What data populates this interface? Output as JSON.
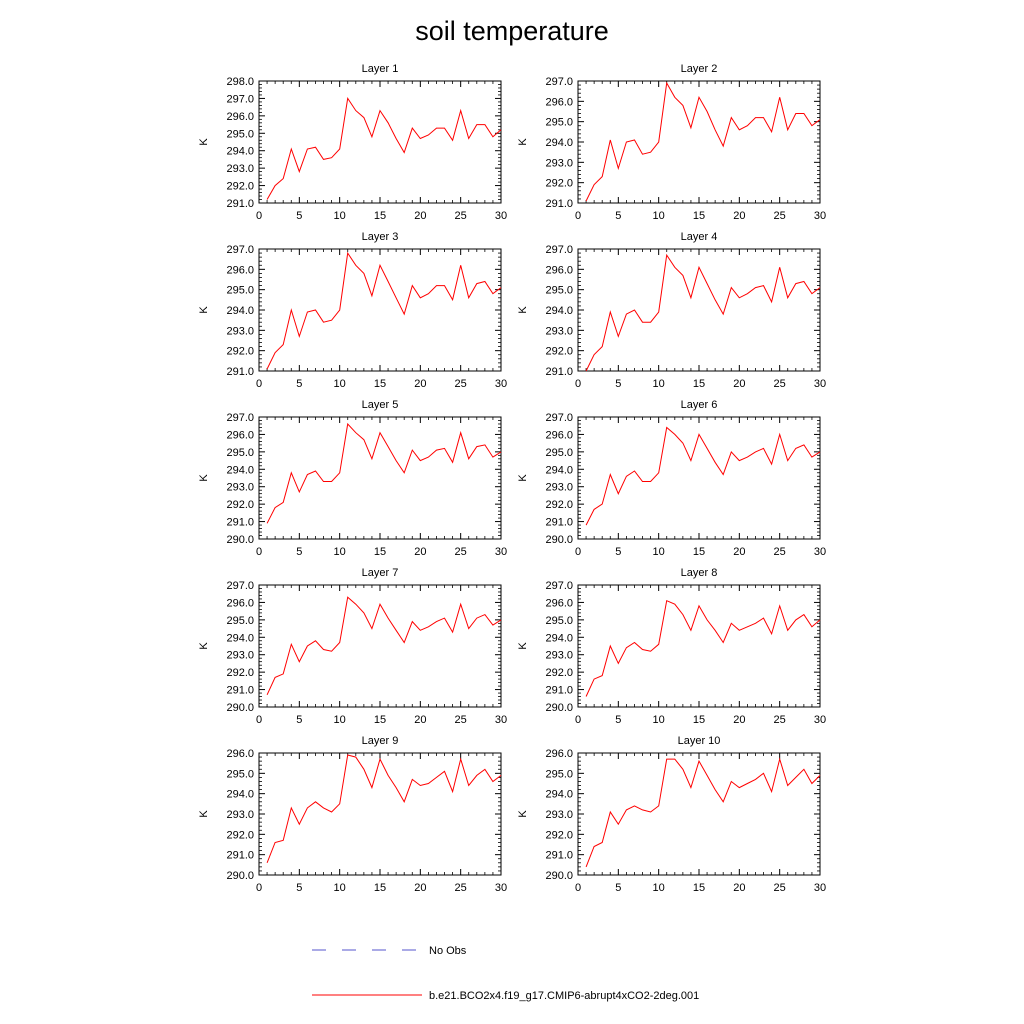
{
  "title": "soil temperature",
  "legend": {
    "placement": "bottom",
    "entries": [
      {
        "label": "No Obs",
        "color": "#5555cc",
        "style": "dashed"
      },
      {
        "label": "b.e21.BCO2x4.f19_g17.CMIP6-abrupt4xCO2-2deg.001",
        "color": "#ff0000",
        "style": "solid"
      }
    ]
  },
  "chart_data": [
    {
      "type": "line",
      "title": "Layer 1",
      "ylabel": "K",
      "xlim": [
        0,
        30
      ],
      "ylim": [
        291,
        298
      ],
      "xticks": [
        "0",
        "5",
        "10",
        "15",
        "20",
        "25",
        "30"
      ],
      "yticks": [
        "291.0",
        "292.0",
        "293.0",
        "294.0",
        "295.0",
        "296.0",
        "297.0",
        "298.0"
      ],
      "series": [
        {
          "name": "b.e21.BCO2x4.f19_g17.CMIP6-abrupt4xCO2-2deg.001",
          "color": "#ff0000",
          "x": [
            1,
            2,
            3,
            4,
            5,
            6,
            7,
            8,
            9,
            10,
            11,
            12,
            13,
            14,
            15,
            16,
            17,
            18,
            19,
            20,
            21,
            22,
            23,
            24,
            25,
            26,
            27,
            28,
            29,
            30
          ],
          "y": [
            291.2,
            292.0,
            292.4,
            294.1,
            292.8,
            294.1,
            294.2,
            293.5,
            293.6,
            294.1,
            297.0,
            296.3,
            295.9,
            294.8,
            296.3,
            295.6,
            294.7,
            293.9,
            295.3,
            294.7,
            294.9,
            295.3,
            295.3,
            294.6,
            296.3,
            294.7,
            295.5,
            295.5,
            294.8,
            295.2
          ]
        }
      ]
    },
    {
      "type": "line",
      "title": "Layer 2",
      "ylabel": "K",
      "xlim": [
        0,
        30
      ],
      "ylim": [
        291,
        297
      ],
      "xticks": [
        "0",
        "5",
        "10",
        "15",
        "20",
        "25",
        "30"
      ],
      "yticks": [
        "291.0",
        "292.0",
        "293.0",
        "294.0",
        "295.0",
        "296.0",
        "297.0"
      ],
      "series": [
        {
          "name": "b.e21.BCO2x4.f19_g17.CMIP6-abrupt4xCO2-2deg.001",
          "color": "#ff0000",
          "x": [
            1,
            2,
            3,
            4,
            5,
            6,
            7,
            8,
            9,
            10,
            11,
            12,
            13,
            14,
            15,
            16,
            17,
            18,
            19,
            20,
            21,
            22,
            23,
            24,
            25,
            26,
            27,
            28,
            29,
            30
          ],
          "y": [
            291.1,
            291.9,
            292.3,
            294.1,
            292.7,
            294.0,
            294.1,
            293.4,
            293.5,
            294.0,
            296.9,
            296.2,
            295.8,
            294.7,
            296.2,
            295.5,
            294.6,
            293.8,
            295.2,
            294.6,
            294.8,
            295.2,
            295.2,
            294.5,
            296.2,
            294.6,
            295.4,
            295.4,
            294.8,
            295.1
          ]
        }
      ]
    },
    {
      "type": "line",
      "title": "Layer 3",
      "ylabel": "K",
      "xlim": [
        0,
        30
      ],
      "ylim": [
        291,
        297
      ],
      "xticks": [
        "0",
        "5",
        "10",
        "15",
        "20",
        "25",
        "30"
      ],
      "yticks": [
        "291.0",
        "292.0",
        "293.0",
        "294.0",
        "295.0",
        "296.0",
        "297.0"
      ],
      "series": [
        {
          "name": "b.e21.BCO2x4.f19_g17.CMIP6-abrupt4xCO2-2deg.001",
          "color": "#ff0000",
          "x": [
            1,
            2,
            3,
            4,
            5,
            6,
            7,
            8,
            9,
            10,
            11,
            12,
            13,
            14,
            15,
            16,
            17,
            18,
            19,
            20,
            21,
            22,
            23,
            24,
            25,
            26,
            27,
            28,
            29,
            30
          ],
          "y": [
            291.1,
            291.9,
            292.3,
            294.0,
            292.7,
            293.9,
            294.0,
            293.4,
            293.5,
            294.0,
            296.8,
            296.2,
            295.8,
            294.7,
            296.2,
            295.4,
            294.6,
            293.8,
            295.2,
            294.6,
            294.8,
            295.2,
            295.2,
            294.5,
            296.2,
            294.6,
            295.3,
            295.4,
            294.8,
            295.1
          ]
        }
      ]
    },
    {
      "type": "line",
      "title": "Layer 4",
      "ylabel": "K",
      "xlim": [
        0,
        30
      ],
      "ylim": [
        291,
        297
      ],
      "xticks": [
        "0",
        "5",
        "10",
        "15",
        "20",
        "25",
        "30"
      ],
      "yticks": [
        "291.0",
        "292.0",
        "293.0",
        "294.0",
        "295.0",
        "296.0",
        "297.0"
      ],
      "series": [
        {
          "name": "b.e21.BCO2x4.f19_g17.CMIP6-abrupt4xCO2-2deg.001",
          "color": "#ff0000",
          "x": [
            1,
            2,
            3,
            4,
            5,
            6,
            7,
            8,
            9,
            10,
            11,
            12,
            13,
            14,
            15,
            16,
            17,
            18,
            19,
            20,
            21,
            22,
            23,
            24,
            25,
            26,
            27,
            28,
            29,
            30
          ],
          "y": [
            291.0,
            291.8,
            292.2,
            293.9,
            292.7,
            293.8,
            294.0,
            293.4,
            293.4,
            293.9,
            296.7,
            296.1,
            295.7,
            294.6,
            296.1,
            295.3,
            294.5,
            293.8,
            295.1,
            294.6,
            294.8,
            295.1,
            295.2,
            294.4,
            296.1,
            294.6,
            295.3,
            295.4,
            294.8,
            295.1
          ]
        }
      ]
    },
    {
      "type": "line",
      "title": "Layer 5",
      "ylabel": "K",
      "xlim": [
        0,
        30
      ],
      "ylim": [
        290,
        297
      ],
      "xticks": [
        "0",
        "5",
        "10",
        "15",
        "20",
        "25",
        "30"
      ],
      "yticks": [
        "290.0",
        "291.0",
        "292.0",
        "293.0",
        "294.0",
        "295.0",
        "296.0",
        "297.0"
      ],
      "series": [
        {
          "name": "b.e21.BCO2x4.f19_g17.CMIP6-abrupt4xCO2-2deg.001",
          "color": "#ff0000",
          "x": [
            1,
            2,
            3,
            4,
            5,
            6,
            7,
            8,
            9,
            10,
            11,
            12,
            13,
            14,
            15,
            16,
            17,
            18,
            19,
            20,
            21,
            22,
            23,
            24,
            25,
            26,
            27,
            28,
            29,
            30
          ],
          "y": [
            290.9,
            291.8,
            292.1,
            293.8,
            292.7,
            293.7,
            293.9,
            293.3,
            293.3,
            293.8,
            296.6,
            296.1,
            295.7,
            294.6,
            296.1,
            295.3,
            294.5,
            293.8,
            295.1,
            294.5,
            294.7,
            295.1,
            295.2,
            294.4,
            296.1,
            294.6,
            295.3,
            295.4,
            294.7,
            295.0
          ]
        }
      ]
    },
    {
      "type": "line",
      "title": "Layer 6",
      "ylabel": "K",
      "xlim": [
        0,
        30
      ],
      "ylim": [
        290,
        297
      ],
      "xticks": [
        "0",
        "5",
        "10",
        "15",
        "20",
        "25",
        "30"
      ],
      "yticks": [
        "290.0",
        "291.0",
        "292.0",
        "293.0",
        "294.0",
        "295.0",
        "296.0",
        "297.0"
      ],
      "series": [
        {
          "name": "b.e21.BCO2x4.f19_g17.CMIP6-abrupt4xCO2-2deg.001",
          "color": "#ff0000",
          "x": [
            1,
            2,
            3,
            4,
            5,
            6,
            7,
            8,
            9,
            10,
            11,
            12,
            13,
            14,
            15,
            16,
            17,
            18,
            19,
            20,
            21,
            22,
            23,
            24,
            25,
            26,
            27,
            28,
            29,
            30
          ],
          "y": [
            290.8,
            291.7,
            292.0,
            293.7,
            292.6,
            293.6,
            293.9,
            293.3,
            293.3,
            293.8,
            296.4,
            296.0,
            295.5,
            294.5,
            296.0,
            295.2,
            294.4,
            293.7,
            295.0,
            294.5,
            294.7,
            295.0,
            295.2,
            294.3,
            296.0,
            294.5,
            295.2,
            295.4,
            294.7,
            295.0
          ]
        }
      ]
    },
    {
      "type": "line",
      "title": "Layer 7",
      "ylabel": "K",
      "xlim": [
        0,
        30
      ],
      "ylim": [
        290,
        297
      ],
      "xticks": [
        "0",
        "5",
        "10",
        "15",
        "20",
        "25",
        "30"
      ],
      "yticks": [
        "290.0",
        "291.0",
        "292.0",
        "293.0",
        "294.0",
        "295.0",
        "296.0",
        "297.0"
      ],
      "series": [
        {
          "name": "b.e21.BCO2x4.f19_g17.CMIP6-abrupt4xCO2-2deg.001",
          "color": "#ff0000",
          "x": [
            1,
            2,
            3,
            4,
            5,
            6,
            7,
            8,
            9,
            10,
            11,
            12,
            13,
            14,
            15,
            16,
            17,
            18,
            19,
            20,
            21,
            22,
            23,
            24,
            25,
            26,
            27,
            28,
            29,
            30
          ],
          "y": [
            290.7,
            291.7,
            291.9,
            293.6,
            292.6,
            293.5,
            293.8,
            293.3,
            293.2,
            293.7,
            296.3,
            295.9,
            295.4,
            294.5,
            295.9,
            295.1,
            294.4,
            293.7,
            294.9,
            294.4,
            294.6,
            294.9,
            295.1,
            294.3,
            295.9,
            294.5,
            295.1,
            295.3,
            294.7,
            295.0
          ]
        }
      ]
    },
    {
      "type": "line",
      "title": "Layer 8",
      "ylabel": "K",
      "xlim": [
        0,
        30
      ],
      "ylim": [
        290,
        297
      ],
      "xticks": [
        "0",
        "5",
        "10",
        "15",
        "20",
        "25",
        "30"
      ],
      "yticks": [
        "290.0",
        "291.0",
        "292.0",
        "293.0",
        "294.0",
        "295.0",
        "296.0",
        "297.0"
      ],
      "series": [
        {
          "name": "b.e21.BCO2x4.f19_g17.CMIP6-abrupt4xCO2-2deg.001",
          "color": "#ff0000",
          "x": [
            1,
            2,
            3,
            4,
            5,
            6,
            7,
            8,
            9,
            10,
            11,
            12,
            13,
            14,
            15,
            16,
            17,
            18,
            19,
            20,
            21,
            22,
            23,
            24,
            25,
            26,
            27,
            28,
            29,
            30
          ],
          "y": [
            290.6,
            291.6,
            291.8,
            293.5,
            292.5,
            293.4,
            293.7,
            293.3,
            293.2,
            293.6,
            296.1,
            295.9,
            295.3,
            294.4,
            295.8,
            295.0,
            294.4,
            293.7,
            294.8,
            294.4,
            294.6,
            294.8,
            295.1,
            294.2,
            295.8,
            294.4,
            295.0,
            295.3,
            294.6,
            295.0
          ]
        }
      ]
    },
    {
      "type": "line",
      "title": "Layer 9",
      "ylabel": "K",
      "xlim": [
        0,
        30
      ],
      "ylim": [
        290,
        296
      ],
      "xticks": [
        "0",
        "5",
        "10",
        "15",
        "20",
        "25",
        "30"
      ],
      "yticks": [
        "290.0",
        "291.0",
        "292.0",
        "293.0",
        "294.0",
        "295.0",
        "296.0"
      ],
      "series": [
        {
          "name": "b.e21.BCO2x4.f19_g17.CMIP6-abrupt4xCO2-2deg.001",
          "color": "#ff0000",
          "x": [
            1,
            2,
            3,
            4,
            5,
            6,
            7,
            8,
            9,
            10,
            11,
            12,
            13,
            14,
            15,
            16,
            17,
            18,
            19,
            20,
            21,
            22,
            23,
            24,
            25,
            26,
            27,
            28,
            29,
            30
          ],
          "y": [
            290.6,
            291.6,
            291.7,
            293.3,
            292.5,
            293.3,
            293.6,
            293.3,
            293.1,
            293.5,
            295.9,
            295.8,
            295.2,
            294.3,
            295.7,
            294.9,
            294.3,
            293.6,
            294.7,
            294.4,
            294.5,
            294.8,
            295.1,
            294.1,
            295.7,
            294.4,
            294.9,
            295.2,
            294.6,
            294.9
          ]
        }
      ]
    },
    {
      "type": "line",
      "title": "Layer 10",
      "ylabel": "K",
      "xlim": [
        0,
        30
      ],
      "ylim": [
        290,
        296
      ],
      "xticks": [
        "0",
        "5",
        "10",
        "15",
        "20",
        "25",
        "30"
      ],
      "yticks": [
        "290.0",
        "291.0",
        "292.0",
        "293.0",
        "294.0",
        "295.0",
        "296.0"
      ],
      "series": [
        {
          "name": "b.e21.BCO2x4.f19_g17.CMIP6-abrupt4xCO2-2deg.001",
          "color": "#ff0000",
          "x": [
            1,
            2,
            3,
            4,
            5,
            6,
            7,
            8,
            9,
            10,
            11,
            12,
            13,
            14,
            15,
            16,
            17,
            18,
            19,
            20,
            21,
            22,
            23,
            24,
            25,
            26,
            27,
            28,
            29,
            30
          ],
          "y": [
            290.4,
            291.4,
            291.6,
            293.1,
            292.5,
            293.2,
            293.4,
            293.2,
            293.1,
            293.4,
            295.7,
            295.7,
            295.2,
            294.3,
            295.6,
            294.9,
            294.2,
            293.6,
            294.6,
            294.3,
            294.5,
            294.7,
            295.0,
            294.1,
            295.7,
            294.4,
            294.8,
            295.2,
            294.5,
            294.9
          ]
        }
      ]
    }
  ]
}
